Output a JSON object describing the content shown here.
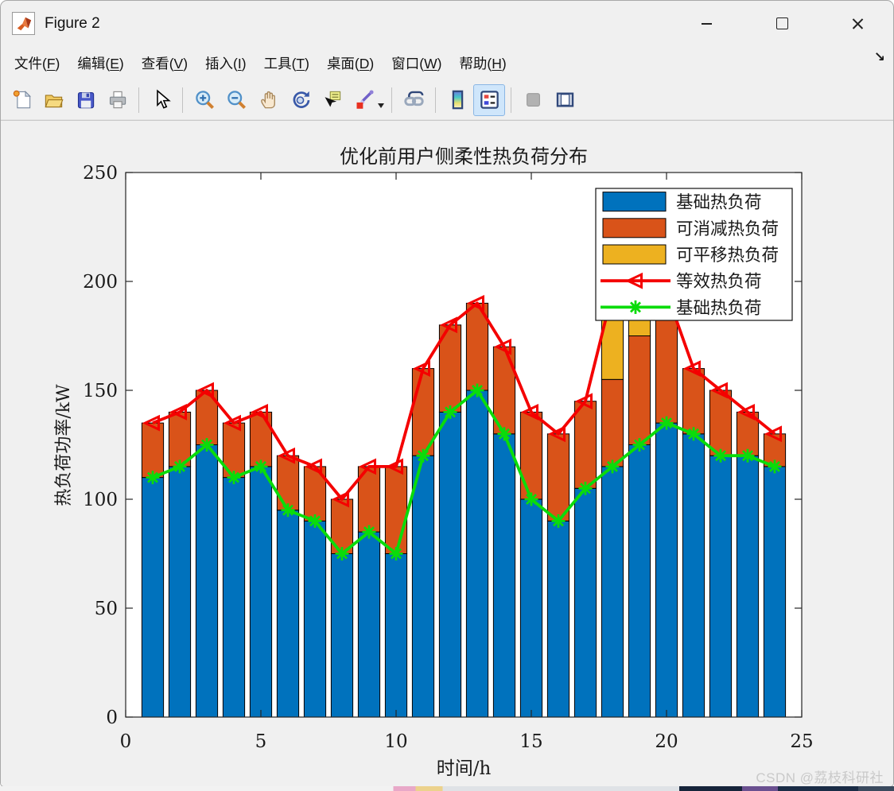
{
  "window": {
    "title": "Figure 2",
    "controls": [
      {
        "name": "minimize-button"
      },
      {
        "name": "maximize-button"
      },
      {
        "name": "close-button"
      }
    ]
  },
  "menu": {
    "items": [
      {
        "name": "file",
        "label": "文件(F)",
        "accel": "F"
      },
      {
        "name": "edit",
        "label": "编辑(E)",
        "accel": "E"
      },
      {
        "name": "view",
        "label": "查看(V)",
        "accel": "V"
      },
      {
        "name": "insert",
        "label": "插入(I)",
        "accel": "I"
      },
      {
        "name": "tools",
        "label": "工具(T)",
        "accel": "T"
      },
      {
        "name": "desktop",
        "label": "桌面(D)",
        "accel": "D"
      },
      {
        "name": "window",
        "label": "窗口(W)",
        "accel": "W"
      },
      {
        "name": "help",
        "label": "帮助(H)",
        "accel": "H"
      }
    ],
    "dock_arrow": "↘"
  },
  "toolbar": {
    "items": [
      {
        "icon": "new-figure-icon"
      },
      {
        "icon": "open-file-icon"
      },
      {
        "icon": "save-figure-icon"
      },
      {
        "icon": "print-figure-icon"
      },
      {
        "icon": "separator"
      },
      {
        "icon": "pointer-icon"
      },
      {
        "icon": "separator"
      },
      {
        "icon": "zoom-in-icon"
      },
      {
        "icon": "zoom-out-icon"
      },
      {
        "icon": "pan-hand-icon"
      },
      {
        "icon": "rotate-3d-icon"
      },
      {
        "icon": "data-cursor-icon"
      },
      {
        "icon": "brush-icon"
      },
      {
        "icon": "brush-dropdown-caret"
      },
      {
        "icon": "separator"
      },
      {
        "icon": "link-plots-icon"
      },
      {
        "icon": "separator"
      },
      {
        "icon": "insert-colorbar-icon"
      },
      {
        "icon": "insert-legend-icon",
        "state": "active"
      },
      {
        "icon": "separator"
      },
      {
        "icon": "hide-plot-tools-icon",
        "state": "disabled"
      },
      {
        "icon": "show-plot-tools-icon"
      }
    ]
  },
  "watermark": "CSDN @荔枝科研社",
  "chart_data": {
    "type": "bar",
    "stacked": true,
    "title": "优化前用户侧柔性热负荷分布",
    "xlabel": "时间/h",
    "ylabel": "热负荷功率/kW",
    "xlim": [
      0,
      25
    ],
    "ylim": [
      0,
      250
    ],
    "xticks": [
      0,
      5,
      10,
      15,
      20,
      25
    ],
    "yticks": [
      0,
      50,
      100,
      150,
      200,
      250
    ],
    "grid": false,
    "legend_position": "top-right",
    "categories": [
      1,
      2,
      3,
      4,
      5,
      6,
      7,
      8,
      9,
      10,
      11,
      12,
      13,
      14,
      15,
      16,
      17,
      18,
      19,
      20,
      21,
      22,
      23,
      24
    ],
    "series": [
      {
        "name": "基础热负荷",
        "type": "bar",
        "color": "#0072BD",
        "marker": "none",
        "values": [
          110,
          115,
          125,
          110,
          115,
          95,
          90,
          75,
          85,
          75,
          120,
          140,
          150,
          130,
          100,
          90,
          105,
          115,
          125,
          135,
          130,
          120,
          120,
          115
        ]
      },
      {
        "name": "可消减热负荷",
        "type": "bar",
        "color": "#D95319",
        "marker": "none",
        "values": [
          25,
          25,
          25,
          25,
          25,
          25,
          25,
          25,
          30,
          40,
          40,
          40,
          40,
          40,
          40,
          40,
          40,
          40,
          50,
          60,
          30,
          30,
          20,
          15
        ]
      },
      {
        "name": "可平移热负荷",
        "type": "bar",
        "color": "#EDB120",
        "marker": "none",
        "values": [
          0,
          0,
          0,
          0,
          0,
          0,
          0,
          0,
          0,
          0,
          0,
          0,
          0,
          0,
          0,
          0,
          0,
          40,
          25,
          0,
          0,
          0,
          0,
          0
        ]
      },
      {
        "name": "等效热负荷",
        "type": "line",
        "color": "#F40000",
        "marker": "triangle-left",
        "values": [
          135,
          140,
          150,
          135,
          140,
          120,
          115,
          100,
          115,
          115,
          160,
          180,
          190,
          170,
          140,
          130,
          145,
          195,
          200,
          195,
          160,
          150,
          140,
          130
        ]
      },
      {
        "name": "基础热负荷",
        "type": "line",
        "color": "#0ADC0A",
        "marker": "asterisk",
        "values": [
          110,
          115,
          125,
          110,
          115,
          95,
          90,
          75,
          85,
          75,
          120,
          140,
          150,
          130,
          100,
          90,
          105,
          115,
          125,
          135,
          130,
          120,
          120,
          115
        ]
      }
    ],
    "axis_color": "#262626"
  }
}
